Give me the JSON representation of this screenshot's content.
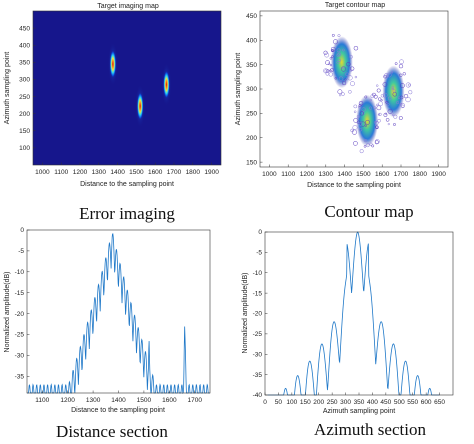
{
  "chart_data": [
    {
      "type": "heatmap",
      "title": "Target imaging map",
      "xlabel": "Distance to the sampling point",
      "ylabel": "Azimuth sampling point",
      "caption": "Error imaging",
      "xlim": [
        950,
        1950
      ],
      "ylim": [
        500,
        50
      ],
      "xticks": [
        1000,
        1100,
        1200,
        1300,
        1400,
        1500,
        1600,
        1700,
        1800,
        1900
      ],
      "yticks": [
        100,
        150,
        200,
        250,
        300,
        350,
        400,
        450
      ],
      "targets": [
        {
          "x": 1375,
          "y": 345
        },
        {
          "x": 1520,
          "y": 222
        },
        {
          "x": 1660,
          "y": 285
        }
      ],
      "colors": {
        "background": "#16168c",
        "low": "#0a55e6",
        "mid": "#30d8f0",
        "high": "#f0e040",
        "peak": "#cc1a10"
      }
    },
    {
      "type": "scatter",
      "title": "Target contour map",
      "xlabel": "Distance to the sampling point",
      "ylabel": "Azimuth sampling point",
      "caption": "Contour map",
      "xlim": [
        950,
        1950
      ],
      "ylim": [
        140,
        460
      ],
      "xticks": [
        1000,
        1100,
        1200,
        1300,
        1400,
        1500,
        1600,
        1700,
        1800,
        1900
      ],
      "yticks": [
        150,
        200,
        250,
        300,
        350,
        400,
        450
      ],
      "clusters": [
        {
          "x": 1385,
          "y": 355
        },
        {
          "x": 1520,
          "y": 235
        },
        {
          "x": 1660,
          "y": 295
        }
      ],
      "grid": false
    },
    {
      "type": "line",
      "xlabel": "Distance to the sampling point",
      "ylabel": "Normalized amplitude(dB)",
      "caption": "Distance section",
      "xlim": [
        1040,
        1760
      ],
      "ylim": [
        -39,
        0
      ],
      "xticks": [
        1100,
        1200,
        1300,
        1400,
        1500,
        1600,
        1700
      ],
      "yticks": [
        0,
        -5,
        -10,
        -15,
        -20,
        -25,
        -30,
        -35
      ],
      "peaks": [
        {
          "x": 1375,
          "y": 0
        },
        {
          "x": 1520,
          "y": -25
        },
        {
          "x": 1660,
          "y": -20
        }
      ],
      "color": "#1f78c8"
    },
    {
      "type": "line",
      "xlabel": "Azimuth sampling point",
      "ylabel": "Normalized amplitude(dB)",
      "caption": "Azimuth section",
      "xlim": [
        0,
        700
      ],
      "ylim": [
        -40,
        0
      ],
      "xticks": [
        0,
        50,
        100,
        150,
        200,
        250,
        300,
        350,
        400,
        450,
        500,
        550,
        600,
        650
      ],
      "yticks": [
        0,
        -5,
        -10,
        -15,
        -20,
        -25,
        -30,
        -35,
        -40
      ],
      "peaks": [
        {
          "x": 345,
          "y": 0
        }
      ],
      "color": "#1f78c8"
    }
  ]
}
